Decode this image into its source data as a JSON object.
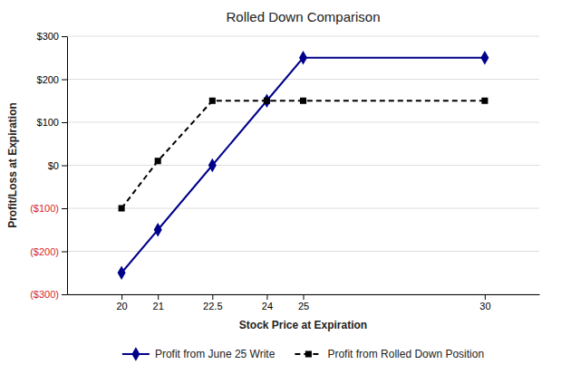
{
  "chart_data": {
    "type": "line",
    "title": "Rolled Down Comparison",
    "xlabel": "Stock Price at Expiration",
    "ylabel": "Profit/Loss at Expiration",
    "x": [
      20,
      21,
      22.5,
      24,
      25,
      30
    ],
    "series": [
      {
        "name": "Profit from June 25 Write",
        "color": "#00008B",
        "marker": "diamond",
        "line_style": "solid",
        "values": [
          -250,
          -150,
          0,
          150,
          250,
          250
        ]
      },
      {
        "name": "Profit from Rolled Down Position",
        "color": "#000000",
        "marker": "square",
        "line_style": "dashed",
        "values": [
          -100,
          10,
          150,
          150,
          150,
          150
        ]
      }
    ],
    "xlim": [
      18.5,
      31.5
    ],
    "xticks": [
      20,
      21,
      22.5,
      24,
      25,
      30
    ],
    "ylim": [
      -300,
      300
    ],
    "yticks": [
      {
        "value": -300,
        "label": "($300)"
      },
      {
        "value": -200,
        "label": "($200)"
      },
      {
        "value": -100,
        "label": "($100)"
      },
      {
        "value": 0,
        "label": "$0"
      },
      {
        "value": 100,
        "label": "$100"
      },
      {
        "value": 200,
        "label": "$200"
      },
      {
        "value": 300,
        "label": "$300"
      }
    ],
    "grid": true,
    "legend": "bottom"
  }
}
